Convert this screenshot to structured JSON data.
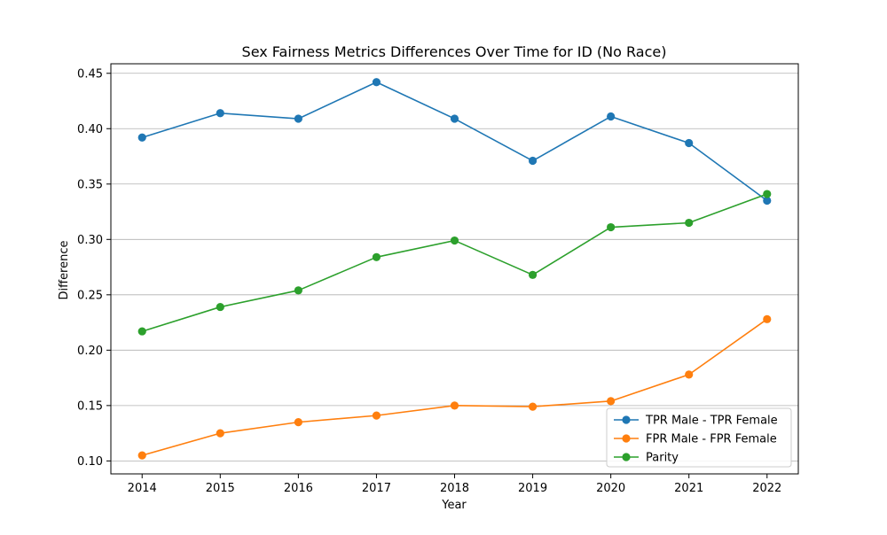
{
  "chart_data": {
    "type": "line",
    "title": "Sex Fairness Metrics Differences Over Time for ID (No Race)",
    "xlabel": "Year",
    "ylabel": "Difference",
    "x": [
      2014,
      2015,
      2016,
      2017,
      2018,
      2019,
      2020,
      2021,
      2022
    ],
    "x_tick_labels": [
      "2014",
      "2015",
      "2016",
      "2017",
      "2018",
      "2019",
      "2020",
      "2021",
      "2022"
    ],
    "xlim": [
      2013.6,
      2022.4
    ],
    "ylim": [
      0.0883,
      0.4586
    ],
    "y_ticks": [
      0.1,
      0.15,
      0.2,
      0.25,
      0.3,
      0.35,
      0.4,
      0.45
    ],
    "y_tick_labels": [
      "0.10",
      "0.15",
      "0.20",
      "0.25",
      "0.30",
      "0.35",
      "0.40",
      "0.45"
    ],
    "grid": "y-major",
    "legend_position": "lower-right",
    "series": [
      {
        "name": "TPR Male - TPR Female",
        "color": "#1f77b4",
        "values": [
          0.392,
          0.414,
          0.409,
          0.442,
          0.409,
          0.371,
          0.411,
          0.387,
          0.335
        ]
      },
      {
        "name": "FPR Male - FPR Female",
        "color": "#ff7f0e",
        "values": [
          0.105,
          0.125,
          0.135,
          0.141,
          0.15,
          0.149,
          0.154,
          0.178,
          0.228
        ]
      },
      {
        "name": "Parity",
        "color": "#2ca02c",
        "values": [
          0.217,
          0.239,
          0.254,
          0.284,
          0.299,
          0.268,
          0.311,
          0.315,
          0.341
        ]
      }
    ]
  }
}
